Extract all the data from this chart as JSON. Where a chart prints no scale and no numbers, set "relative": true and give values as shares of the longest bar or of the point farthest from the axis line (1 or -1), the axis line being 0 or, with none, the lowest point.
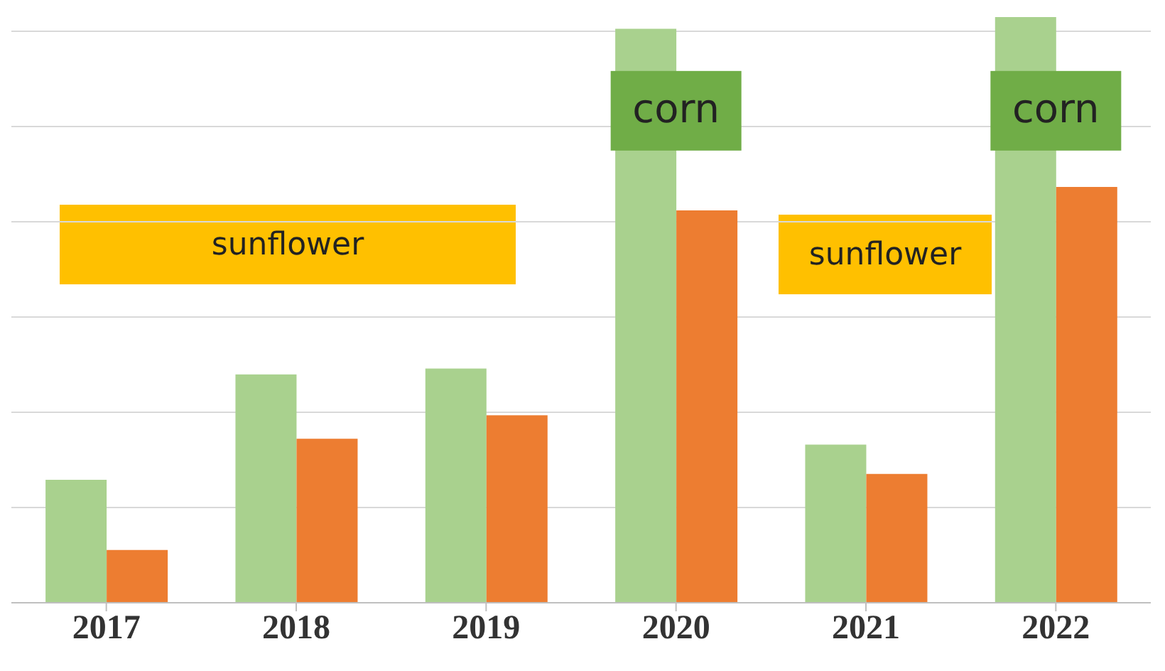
{
  "chart_data": {
    "type": "bar",
    "relative": true,
    "grid": "y",
    "categories": [
      "2017",
      "2018",
      "2019",
      "2020",
      "2021",
      "2022"
    ],
    "series": [
      {
        "color": "#a9d18e",
        "values": [
          0.21,
          0.39,
          0.4,
          0.98,
          0.27,
          1
        ]
      },
      {
        "color": "#ed7d31",
        "values": [
          0.09,
          0.28,
          0.32,
          0.67,
          0.22,
          0.71
        ]
      }
    ],
    "annotations": [
      "sunflower",
      {
        "text": "corn",
        "x": "2020",
        "y": 0.84
      },
      "sunflower",
      {
        "text": "corn",
        "x": "2022",
        "y": 0.84
      }
    ]
  }
}
